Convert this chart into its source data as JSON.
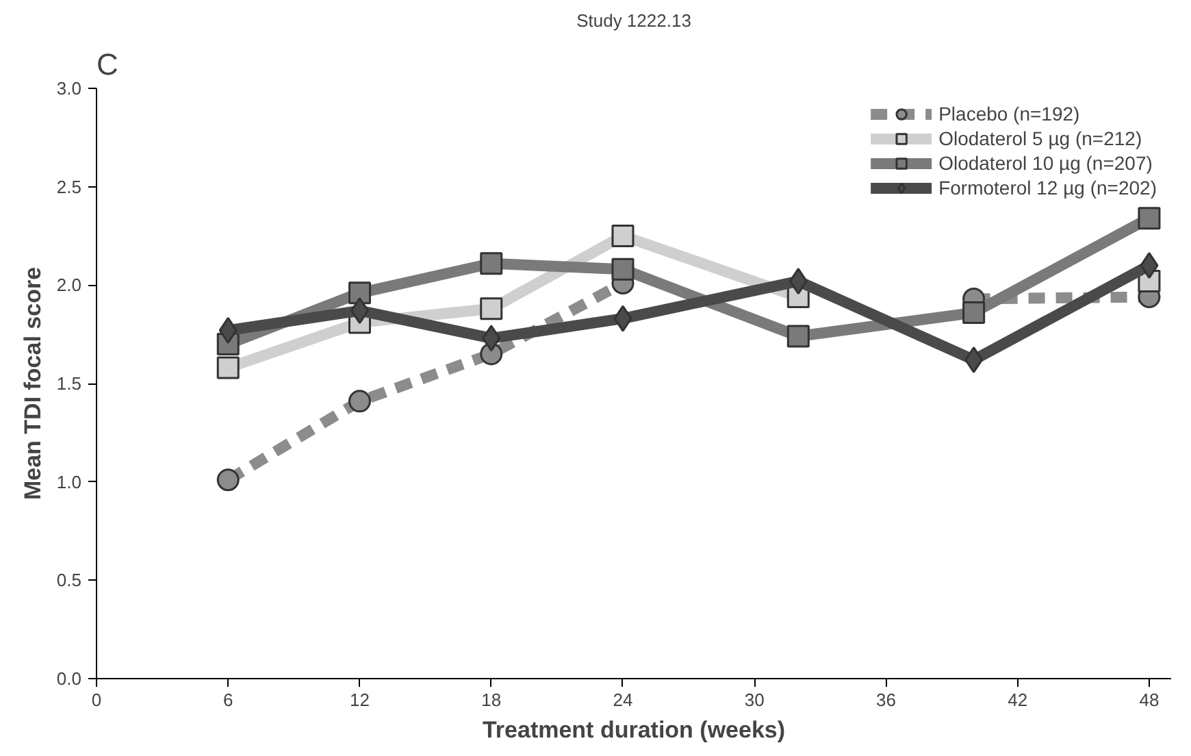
{
  "chart_data": {
    "type": "line",
    "title": "Study 1222.13",
    "annotations": [
      "C"
    ],
    "xlabel": "Treatment duration (weeks)",
    "ylabel": "Mean TDI focal score",
    "x": [
      6,
      12,
      18,
      24,
      32,
      40,
      48
    ],
    "xlim": [
      0,
      49
    ],
    "xticks": [
      0,
      6,
      12,
      18,
      24,
      30,
      36,
      42,
      48
    ],
    "ylim": [
      0,
      3
    ],
    "yticks": [
      {
        "value": 0,
        "label": "0.0"
      },
      0.5,
      {
        "value": 1,
        "label": "1.0"
      },
      1.5,
      {
        "value": 2,
        "label": "2.0"
      },
      2.5,
      {
        "value": 3,
        "label": "3.0"
      }
    ],
    "grid": false,
    "legend": "top right",
    "series": [
      {
        "name": "Placebo (n=192)",
        "color": "#8c8c8c",
        "marker": "circle",
        "line_style": "dashed",
        "values": [
          1.01,
          1.41,
          1.65,
          2.01,
          null,
          1.93,
          1.94
        ]
      },
      {
        "name": "Olodaterol 5 µg (n=212)",
        "color": "#cfcfcf",
        "marker": "square",
        "line_style": "solid",
        "values": [
          1.58,
          1.81,
          1.88,
          2.25,
          1.94,
          null,
          2.02
        ]
      },
      {
        "name": "Olodaterol 10 µg (n=207)",
        "color": "#7a7a7a",
        "marker": "square",
        "line_style": "solid",
        "values": [
          1.7,
          1.96,
          2.11,
          2.08,
          1.74,
          1.86,
          2.34
        ]
      },
      {
        "name": "Formoterol 12 µg (n=202)",
        "color": "#4a4a4a",
        "marker": "diamond",
        "line_style": "solid",
        "values": [
          1.77,
          1.87,
          1.73,
          1.83,
          2.02,
          1.62,
          2.1
        ]
      }
    ]
  }
}
